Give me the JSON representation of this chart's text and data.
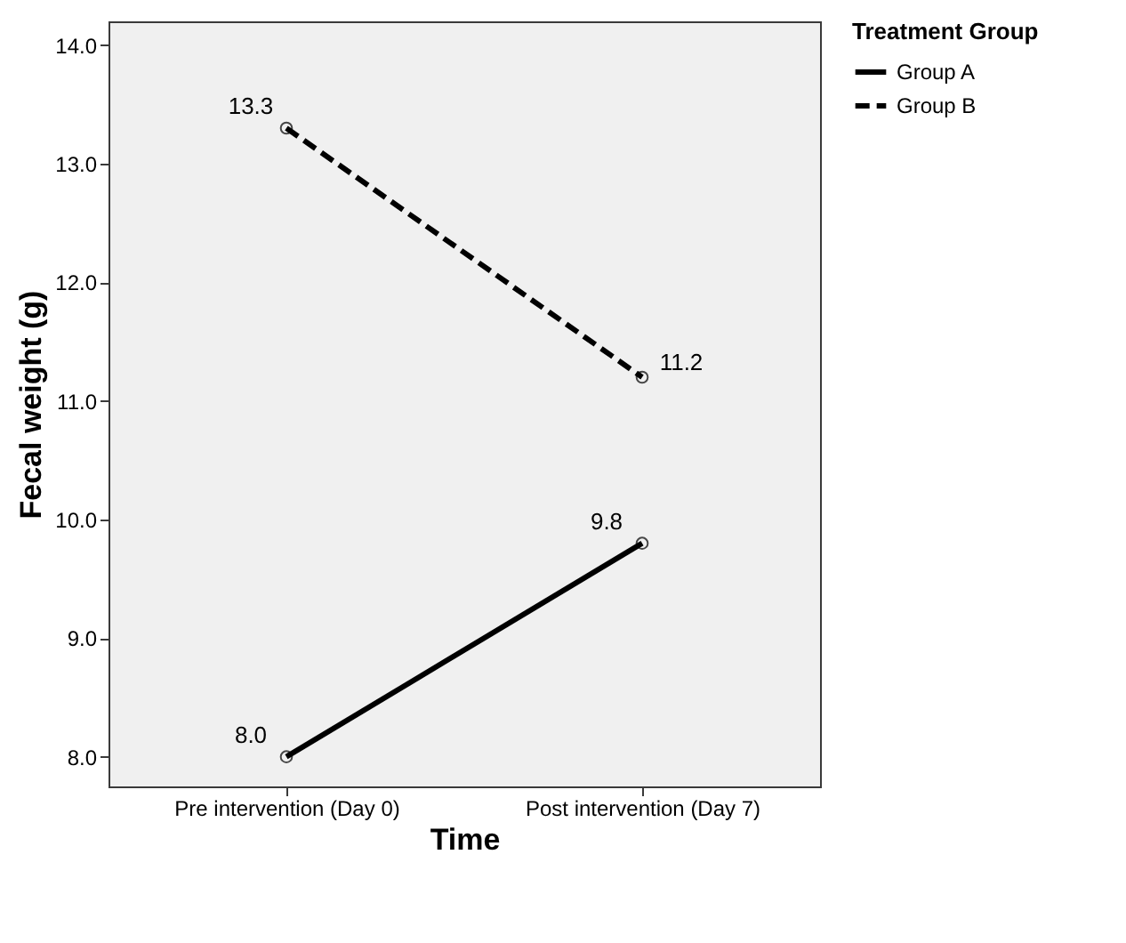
{
  "chart_data": {
    "type": "line",
    "xlabel": "Time",
    "ylabel": "Fecal weight (g)",
    "legend_title": "Treatment Group",
    "categories": [
      "Pre intervention (Day 0)",
      "Post intervention (Day 7)"
    ],
    "series": [
      {
        "name": "Group A",
        "color": "#000000",
        "line_style": "solid",
        "values": [
          8.0,
          9.8
        ],
        "value_labels": [
          "8.0",
          "9.8"
        ]
      },
      {
        "name": "Group B",
        "color": "#000000",
        "line_style": "dashed",
        "values": [
          13.3,
          11.2
        ],
        "value_labels": [
          "13.3",
          "11.2"
        ]
      }
    ],
    "ylim": [
      7.75,
      14.2
    ],
    "yticks": [
      {
        "value": 8,
        "label": "8.0"
      },
      {
        "value": 9,
        "label": "9.0"
      },
      {
        "value": 10,
        "label": "10.0"
      },
      {
        "value": 11,
        "label": "11.0"
      },
      {
        "value": 12,
        "label": "12.0"
      },
      {
        "value": 13,
        "label": "13.0"
      },
      {
        "value": 14,
        "label": "14.0"
      }
    ],
    "grid": false,
    "legend": "top right",
    "marker": "circle"
  }
}
